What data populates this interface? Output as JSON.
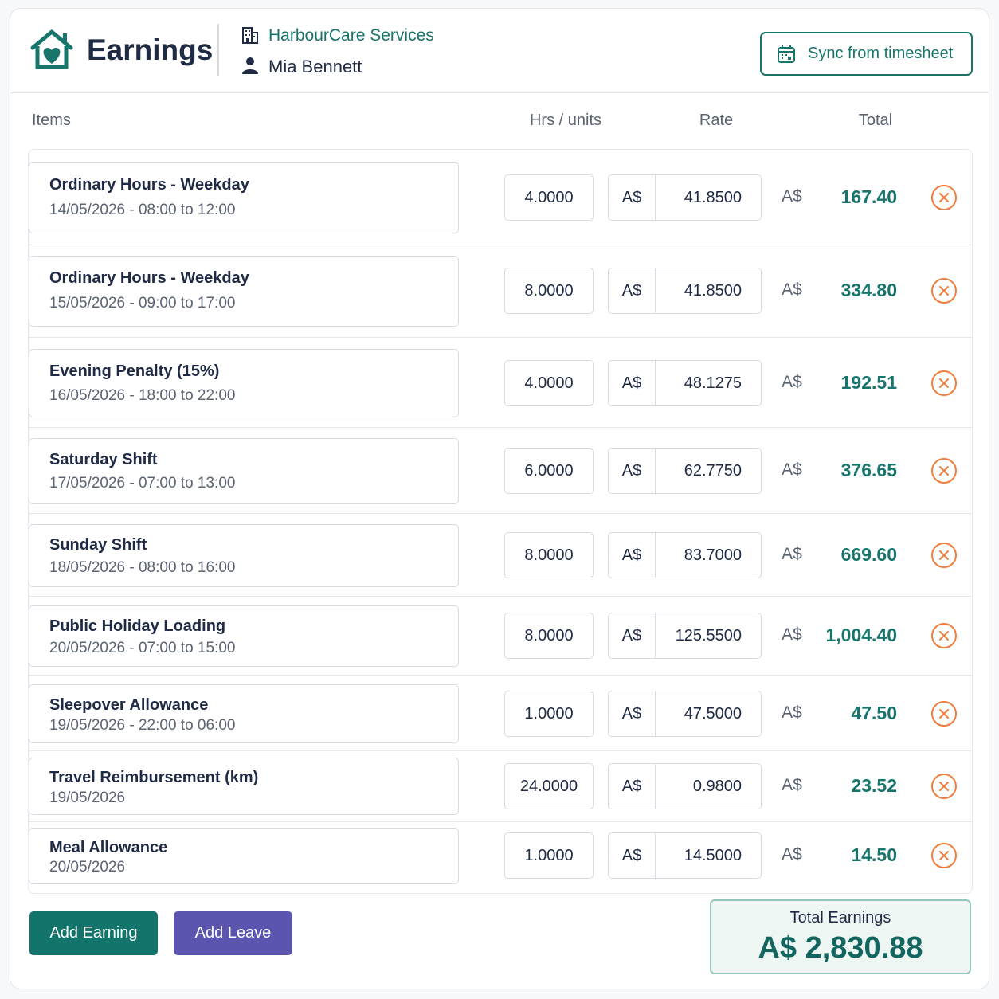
{
  "header": {
    "title": "Earnings",
    "organisation": "HarbourCare Services",
    "person": "Mia Bennett",
    "sync_button": "Sync from timesheet"
  },
  "table": {
    "columns": [
      "Items",
      "Hrs / units",
      "Rate",
      "Total"
    ],
    "rows": [
      {
        "name": "Ordinary Hours - Weekday",
        "detail": "14/05/2026 - 08:00 to 12:00",
        "units": "4.0000",
        "rate_currency": "A$",
        "rate": "41.8500",
        "total_currency": "A$",
        "total": "167.40"
      },
      {
        "name": "Ordinary Hours - Weekday",
        "detail": "15/05/2026 - 09:00 to 17:00",
        "units": "8.0000",
        "rate_currency": "A$",
        "rate": "41.8500",
        "total_currency": "A$",
        "total": "334.80"
      },
      {
        "name": "Evening Penalty (15%)",
        "detail": "16/05/2026 - 18:00 to 22:00",
        "units": "4.0000",
        "rate_currency": "A$",
        "rate": "48.1275",
        "total_currency": "A$",
        "total": "192.51"
      },
      {
        "name": "Saturday Shift",
        "detail": "17/05/2026 - 07:00 to 13:00",
        "units": "6.0000",
        "rate_currency": "A$",
        "rate": "62.7750",
        "total_currency": "A$",
        "total": "376.65"
      },
      {
        "name": "Sunday Shift",
        "detail": "18/05/2026 - 08:00 to 16:00",
        "units": "8.0000",
        "rate_currency": "A$",
        "rate": "83.7000",
        "total_currency": "A$",
        "total": "669.60"
      },
      {
        "name": "Public Holiday Loading",
        "detail": "20/05/2026 - 07:00 to 15:00",
        "units": "8.0000",
        "rate_currency": "A$",
        "rate": "125.5500",
        "total_currency": "A$",
        "total": "1,004.40"
      },
      {
        "name": "Sleepover Allowance",
        "detail": "19/05/2026 - 22:00 to 06:00",
        "units": "1.0000",
        "rate_currency": "A$",
        "rate": "47.5000",
        "total_currency": "A$",
        "total": "47.50"
      },
      {
        "name": "Travel Reimbursement (km)",
        "detail": "19/05/2026",
        "units": "24.0000",
        "rate_currency": "A$",
        "rate": "0.9800",
        "total_currency": "A$",
        "total": "23.52"
      },
      {
        "name": "Meal Allowance",
        "detail": "20/05/2026",
        "units": "1.0000",
        "rate_currency": "A$",
        "rate": "14.5000",
        "total_currency": "A$",
        "total": "14.50"
      }
    ]
  },
  "footer": {
    "add_earning_button": "Add Earning",
    "add_leave_button": "Add Leave",
    "total_label": "Total Earnings",
    "total": "A$ 2,830.88"
  }
}
